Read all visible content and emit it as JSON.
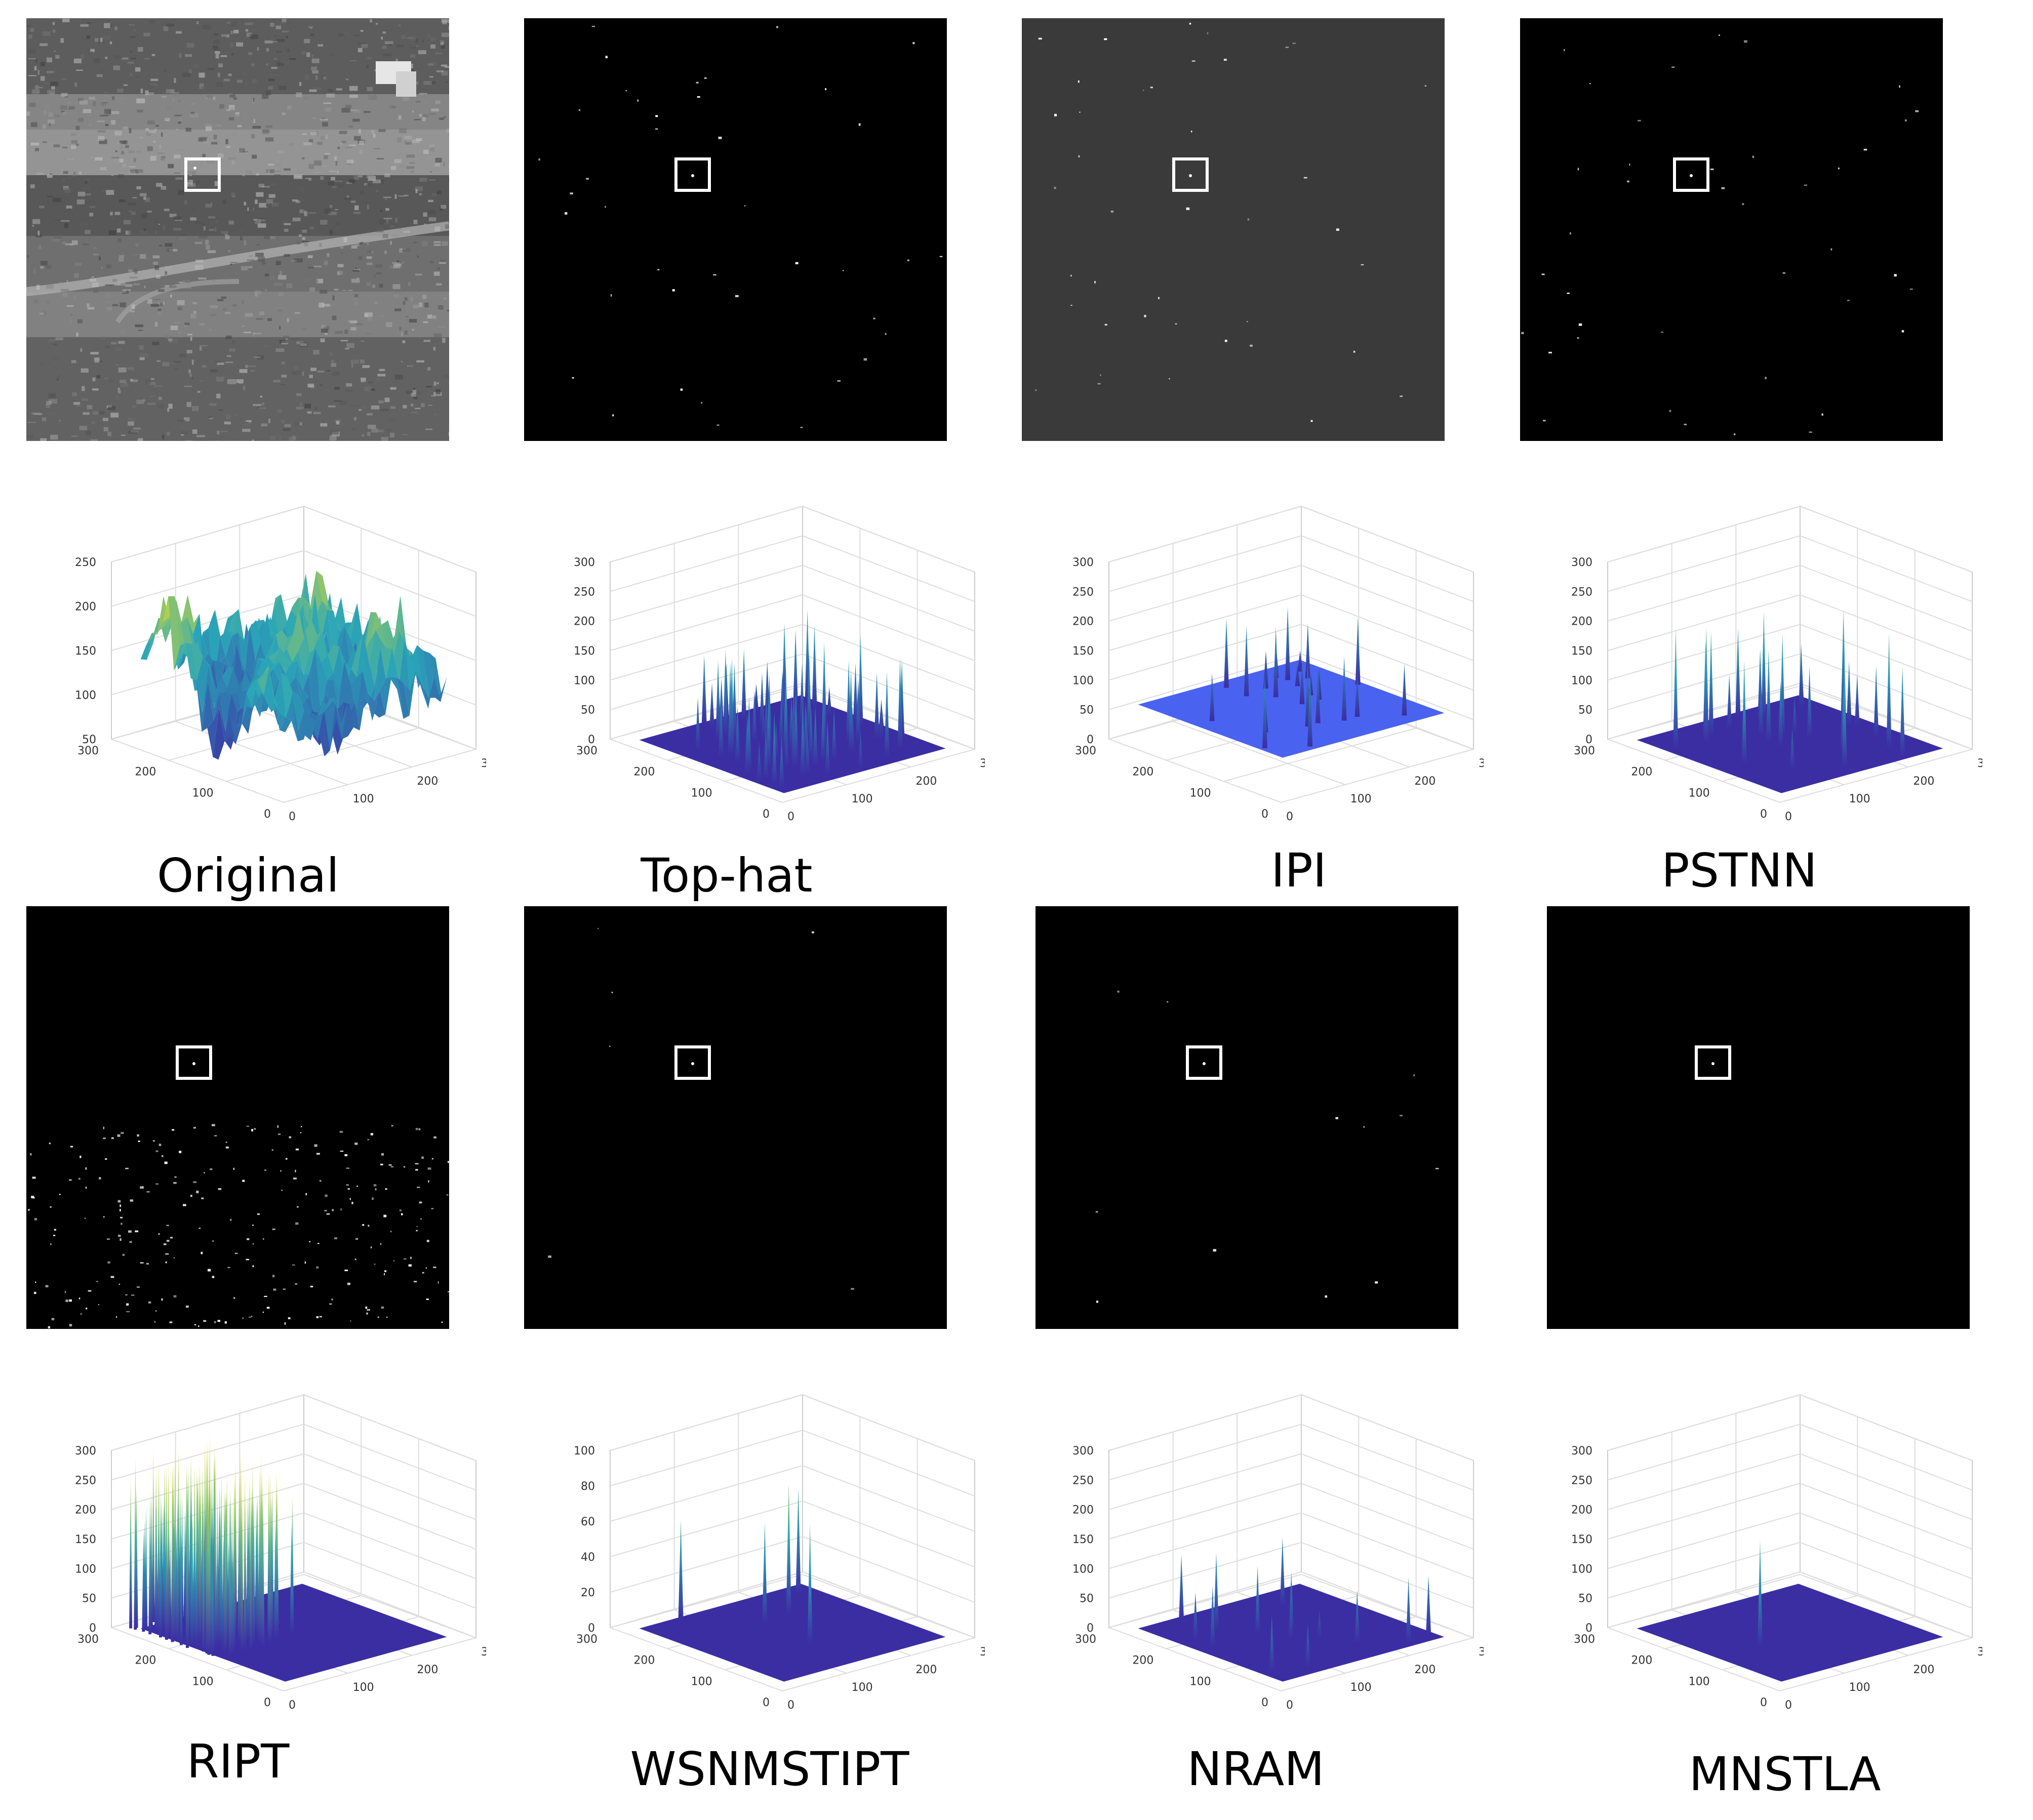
{
  "panels": [
    {
      "label": "Original",
      "image": "original-infrared-scene",
      "plot": {
        "zticks": [
          "50",
          "100",
          "150",
          "200",
          "250"
        ],
        "zmax": 250,
        "profile": "terrain"
      }
    },
    {
      "label": "Top-hat",
      "image": "target-map-dark",
      "plot": {
        "zticks": [
          "0",
          "50",
          "100",
          "150",
          "200",
          "250",
          "300"
        ],
        "zmax": 300,
        "profile": "many-spikes"
      }
    },
    {
      "label": "IPI",
      "image": "target-map-gray",
      "plot": {
        "zticks": [
          "0",
          "50",
          "100",
          "150",
          "200",
          "250",
          "300"
        ],
        "zmax": 300,
        "profile": "flat-spikes"
      }
    },
    {
      "label": "PSTNN",
      "image": "target-map-dark",
      "plot": {
        "zticks": [
          "0",
          "50",
          "100",
          "150",
          "200",
          "250",
          "300"
        ],
        "zmax": 300,
        "profile": "some-spikes"
      }
    },
    {
      "label": "RIPT",
      "image": "target-map-dark",
      "plot": {
        "zticks": [
          "0",
          "50",
          "100",
          "150",
          "200",
          "250",
          "300"
        ],
        "zmax": 300,
        "profile": "dense-spikes"
      }
    },
    {
      "label": "WSNMSTIPT",
      "image": "target-map-dark",
      "plot": {
        "zticks": [
          "0",
          "20",
          "40",
          "60",
          "80",
          "100"
        ],
        "zmax": 100,
        "profile": "few-spikes"
      }
    },
    {
      "label": "NRAM",
      "image": "target-map-dark",
      "plot": {
        "zticks": [
          "0",
          "50",
          "100",
          "150",
          "200",
          "250",
          "300"
        ],
        "zmax": 300,
        "profile": "several-spikes"
      }
    },
    {
      "label": "MNSTLA",
      "image": "target-map-dark",
      "plot": {
        "zticks": [
          "0",
          "50",
          "100",
          "150",
          "200",
          "250",
          "300"
        ],
        "zmax": 300,
        "profile": "single-spike"
      }
    }
  ],
  "axes": {
    "yticks": [
      "0",
      "100",
      "200",
      "300"
    ],
    "xticks": [
      "0",
      "100",
      "200",
      "300"
    ]
  },
  "colors": {
    "surface_low": "#3b2ea3",
    "surface_mid": "#2aa6b8",
    "surface_high": "#f5e31c",
    "ipi_floor": "#4a62f0",
    "box": "#ffffff"
  }
}
